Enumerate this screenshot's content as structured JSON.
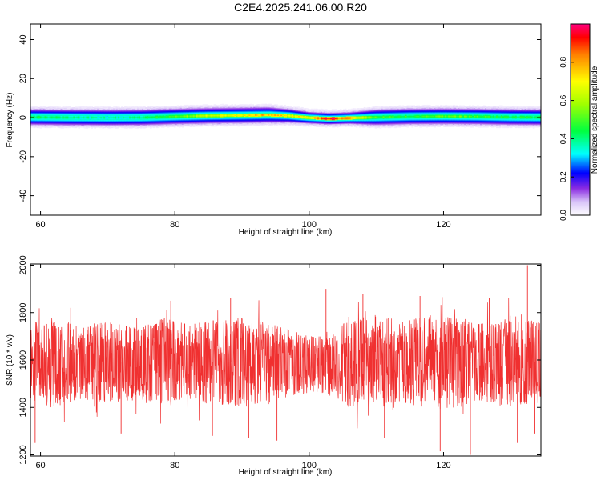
{
  "title": "C2E4.2025.241.06.00.R20",
  "chart_data": [
    {
      "type": "heatmap",
      "xlabel": "Height of straight line (km)",
      "ylabel": "Frequency (Hz)",
      "xlim": [
        58.5,
        134.5
      ],
      "ylim": [
        -50,
        48
      ],
      "x_ticks": [
        60,
        80,
        100,
        120
      ],
      "x_tick_labels": [
        "60",
        "80",
        "100",
        "120"
      ],
      "y_ticks": [
        -40,
        -20,
        0,
        20,
        40
      ],
      "y_tick_labels": [
        "-40",
        "-20",
        "0",
        "20",
        "40"
      ],
      "band": {
        "x": [
          58.5,
          65,
          70,
          75,
          80,
          85,
          90,
          94,
          97,
          100,
          103,
          106,
          110,
          115,
          120,
          125,
          130,
          134.5
        ],
        "center_hz": [
          0.5,
          0.3,
          0.2,
          0.3,
          0.8,
          1.2,
          1.4,
          1.6,
          1.2,
          0.2,
          -0.3,
          0.0,
          0.4,
          0.8,
          0.9,
          0.8,
          0.5,
          0.4
        ],
        "peak_amplitude": [
          0.45,
          0.42,
          0.4,
          0.42,
          0.5,
          0.65,
          0.72,
          0.85,
          0.7,
          0.75,
          1.0,
          0.82,
          0.5,
          0.48,
          0.55,
          0.5,
          0.45,
          0.45
        ],
        "half_width_hz": [
          4,
          4,
          4,
          4,
          4,
          4,
          4,
          4,
          3.5,
          3,
          3,
          3,
          4,
          4,
          4,
          4,
          4,
          4
        ]
      },
      "colorbar": {
        "label": "Normalized spectral amplitude",
        "range": [
          0,
          1
        ],
        "ticks": [
          0,
          0.2,
          0.4,
          0.6,
          0.8
        ],
        "tick_labels": [
          "0.0",
          "0.2",
          "0.4",
          "0.6",
          "0.8"
        ]
      },
      "grid": false
    },
    {
      "type": "line",
      "xlabel": "Height of straight line (km)",
      "ylabel": "SNR (10 * v/v)",
      "xlim": [
        58.5,
        134.5
      ],
      "ylim": [
        1195,
        2005
      ],
      "x_ticks": [
        60,
        80,
        100,
        120
      ],
      "x_tick_labels": [
        "60",
        "80",
        "100",
        "120"
      ],
      "y_ticks": [
        1200,
        1400,
        1600,
        1800,
        2000
      ],
      "y_tick_labels": [
        "1200",
        "1400",
        "1600",
        "1800",
        "2000"
      ],
      "series": [
        {
          "color": "#f03030",
          "mean": 1590,
          "x": [
            58.5,
            62,
            66,
            70,
            74,
            78,
            82,
            86,
            90,
            94,
            98,
            100,
            102,
            104,
            106,
            110,
            114,
            118,
            122,
            126,
            130,
            134.5
          ],
          "upper": [
            1760,
            1780,
            1750,
            1760,
            1740,
            1780,
            1760,
            1770,
            1780,
            1760,
            1720,
            1700,
            1700,
            1720,
            1790,
            1790,
            1770,
            1790,
            1780,
            1760,
            1790,
            1760
          ],
          "lower": [
            1420,
            1400,
            1430,
            1420,
            1430,
            1400,
            1420,
            1410,
            1400,
            1410,
            1450,
            1460,
            1460,
            1440,
            1400,
            1400,
            1410,
            1390,
            1400,
            1410,
            1400,
            1420
          ],
          "spikes": [
            [
              59.2,
              1250
            ],
            [
              64.5,
              1820
            ],
            [
              72.0,
              1290
            ],
            [
              79.4,
              1850
            ],
            [
              85.6,
              1280
            ],
            [
              88.3,
              1860
            ],
            [
              91.0,
              1270
            ],
            [
              95.2,
              1260
            ],
            [
              102.5,
              1900
            ],
            [
              108.0,
              1880
            ],
            [
              111.2,
              1270
            ],
            [
              116.5,
              1870
            ],
            [
              119.5,
              1215
            ],
            [
              124.0,
              1200
            ],
            [
              126.8,
              1860
            ],
            [
              131.0,
              1250
            ],
            [
              132.5,
              2000
            ],
            [
              133.6,
              1290
            ]
          ]
        }
      ],
      "grid": false
    }
  ]
}
